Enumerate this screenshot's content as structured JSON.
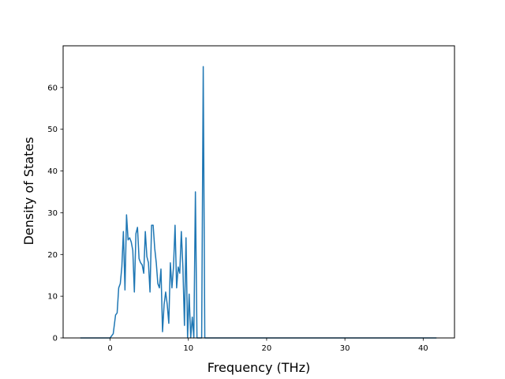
{
  "chart_data": {
    "type": "line",
    "title": "",
    "xlabel": "Frequency (THz)",
    "ylabel": "Density of States",
    "xlim": [
      -6,
      44
    ],
    "ylim": [
      0,
      70
    ],
    "xticks": [
      0,
      10,
      20,
      30,
      40
    ],
    "yticks": [
      0,
      10,
      20,
      30,
      40,
      50,
      60
    ],
    "grid": false,
    "legend": "none",
    "series": [
      {
        "color": "#1f77b4",
        "x": [
          -3.8,
          0,
          0.4,
          0.7,
          0.9,
          1.1,
          1.3,
          1.5,
          1.7,
          1.9,
          2.1,
          2.3,
          2.5,
          2.7,
          2.9,
          3.1,
          3.3,
          3.5,
          3.7,
          3.9,
          4.1,
          4.3,
          4.5,
          4.7,
          4.9,
          5.1,
          5.3,
          5.5,
          5.7,
          5.9,
          6.1,
          6.3,
          6.5,
          6.7,
          6.9,
          7.1,
          7.3,
          7.5,
          7.7,
          7.9,
          8.1,
          8.3,
          8.5,
          8.7,
          8.9,
          9.1,
          9.3,
          9.5,
          9.7,
          9.9,
          10.1,
          10.3,
          10.5,
          10.7,
          10.9,
          11.1,
          11.3,
          11.5,
          11.7,
          11.9,
          12.1,
          12.3,
          12.5,
          12.7,
          12.9,
          13.1,
          13.3,
          14.6,
          14.8,
          15.0,
          15.2,
          15.4,
          15.6,
          41.7
        ],
        "y": [
          0,
          0,
          1,
          5.5,
          6,
          12,
          13,
          17,
          25.5,
          11.5,
          29.5,
          23.5,
          24,
          23,
          21,
          11,
          25,
          26.5,
          19,
          18,
          17.5,
          15.5,
          25.5,
          19.5,
          18,
          11,
          27,
          27,
          21.5,
          18,
          13,
          12,
          16.5,
          1.5,
          8,
          11,
          8,
          3.5,
          18,
          12,
          17,
          27,
          12,
          17,
          15.5,
          25.5,
          17,
          3,
          24,
          0,
          10.5,
          0,
          5,
          0,
          35,
          0,
          0,
          0,
          0,
          65,
          0,
          0,
          0,
          0,
          0,
          0,
          0,
          0,
          0,
          0,
          0,
          0,
          0,
          0
        ]
      }
    ]
  }
}
